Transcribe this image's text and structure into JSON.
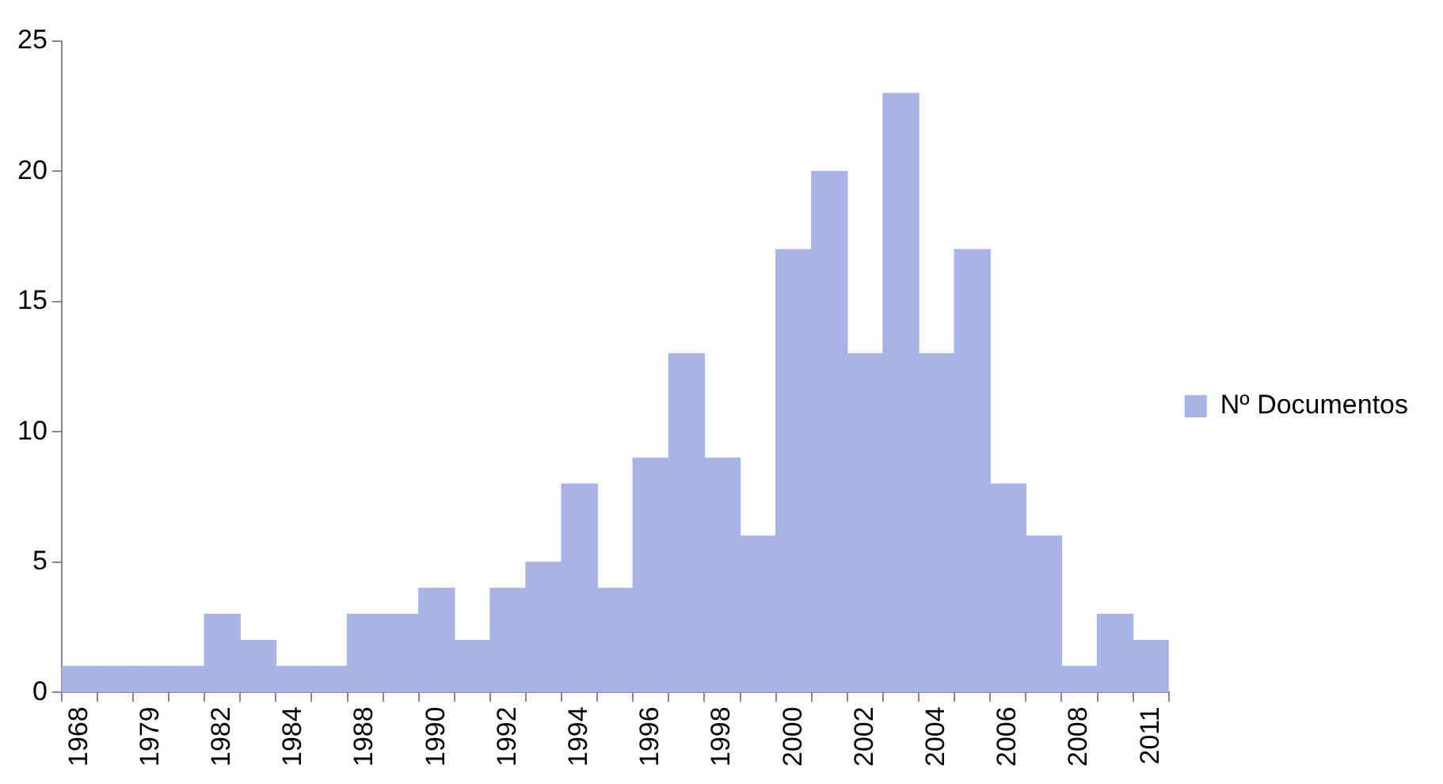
{
  "chart_data": {
    "type": "bar",
    "categories": [
      "1968",
      null,
      "1979",
      null,
      "1982",
      null,
      "1984",
      null,
      "1988",
      null,
      "1990",
      null,
      "1992",
      null,
      "1994",
      null,
      "1996",
      null,
      "1998",
      null,
      "2000",
      null,
      "2002",
      null,
      "2004",
      null,
      "2006",
      null,
      "2008",
      null,
      "2011"
    ],
    "series": [
      {
        "name": "Nº Documentos",
        "color": "#aab3e6",
        "values": [
          1,
          1,
          1,
          1,
          3,
          2,
          1,
          1,
          3,
          3,
          4,
          2,
          4,
          5,
          8,
          4,
          9,
          13,
          9,
          6,
          17,
          20,
          13,
          23,
          13,
          17,
          8,
          6,
          1,
          3,
          2
        ]
      }
    ],
    "ylim": [
      0,
      25
    ],
    "yticks": [
      0,
      5,
      10,
      15,
      20,
      25
    ],
    "grid": false,
    "legend": "right"
  }
}
